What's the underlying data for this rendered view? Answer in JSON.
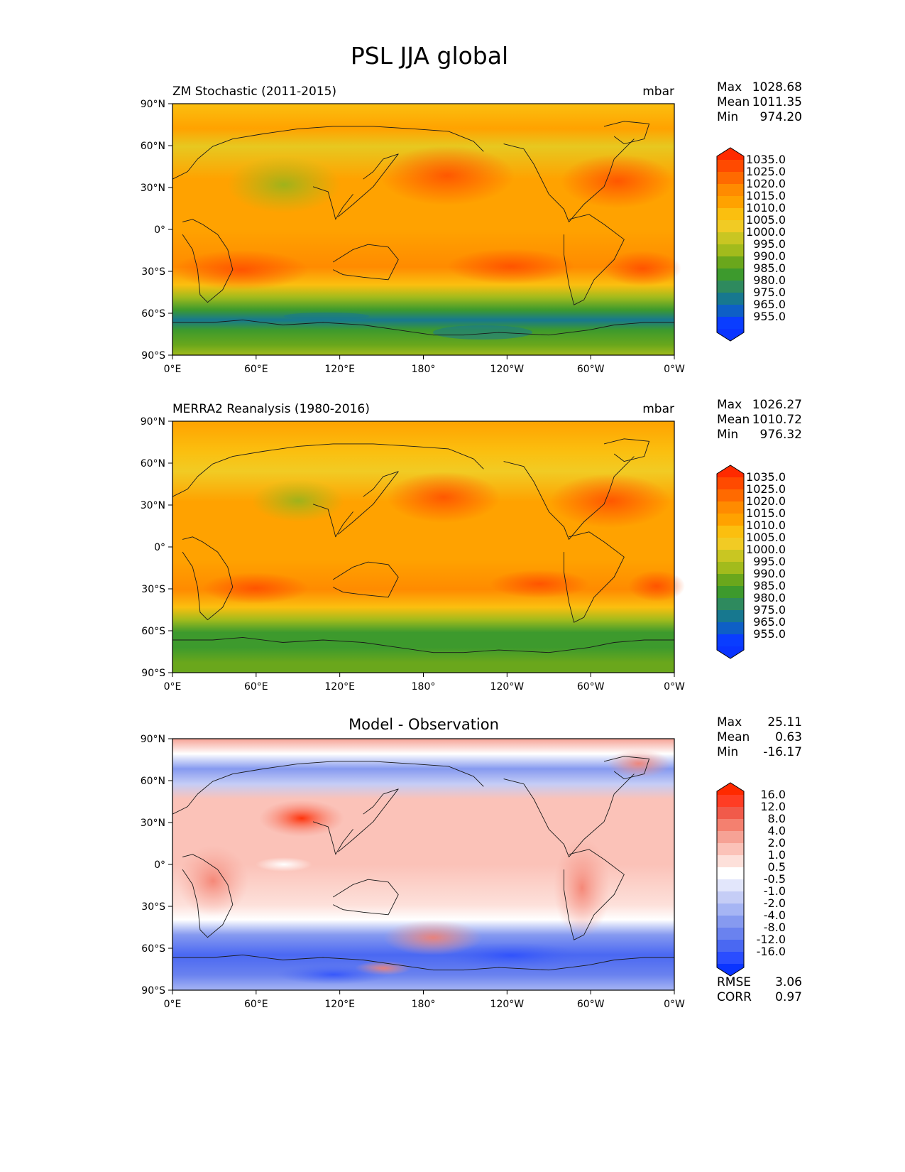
{
  "title": "PSL JJA global",
  "chart_data": [
    {
      "type": "heatmap",
      "panel_id": "model",
      "title_left": "ZM Stochastic (2011-2015)",
      "title_center": "",
      "units": "mbar",
      "stats": [
        {
          "label": "Max",
          "value": "1028.68"
        },
        {
          "label": "Mean",
          "value": "1011.35"
        },
        {
          "label": "Min",
          "value": "974.20"
        }
      ],
      "extra_stats": [],
      "colorbar": {
        "labels": [
          "1035.0",
          "1025.0",
          "1020.0",
          "1015.0",
          "1010.0",
          "1005.0",
          "1000.0",
          "995.0",
          "990.0",
          "985.0",
          "980.0",
          "975.0",
          "965.0",
          "955.0"
        ],
        "colors": [
          "#ff2a00",
          "#ff4a00",
          "#ff6a00",
          "#ff8b00",
          "#ffa200",
          "#fbbf0f",
          "#f1cb24",
          "#c9c622",
          "#a2bb1c",
          "#6aa71c",
          "#3d9a2d",
          "#2e8a5e",
          "#17788f",
          "#0e5fc6",
          "#0a3dff",
          "#0a34ff"
        ]
      },
      "xlabels": [
        "0°E",
        "60°E",
        "120°E",
        "180°",
        "120°W",
        "60°W",
        "0°W"
      ],
      "ylabels": [
        "90°N",
        "60°N",
        "30°N",
        "0°",
        "30°S",
        "60°S",
        "90°S"
      ]
    },
    {
      "type": "heatmap",
      "panel_id": "obs",
      "title_left": "MERRA2 Reanalysis (1980-2016)",
      "title_center": "",
      "units": "mbar",
      "stats": [
        {
          "label": "Max",
          "value": "1026.27"
        },
        {
          "label": "Mean",
          "value": "1010.72"
        },
        {
          "label": "Min",
          "value": "976.32"
        }
      ],
      "extra_stats": [],
      "colorbar": {
        "labels": [
          "1035.0",
          "1025.0",
          "1020.0",
          "1015.0",
          "1010.0",
          "1005.0",
          "1000.0",
          "995.0",
          "990.0",
          "985.0",
          "980.0",
          "975.0",
          "965.0",
          "955.0"
        ],
        "colors": [
          "#ff2a00",
          "#ff4a00",
          "#ff6a00",
          "#ff8b00",
          "#ffa200",
          "#fbbf0f",
          "#f1cb24",
          "#c9c622",
          "#a2bb1c",
          "#6aa71c",
          "#3d9a2d",
          "#2e8a5e",
          "#17788f",
          "#0e5fc6",
          "#0a3dff",
          "#0a34ff"
        ]
      },
      "xlabels": [
        "0°E",
        "60°E",
        "120°E",
        "180°",
        "120°W",
        "60°W",
        "0°W"
      ],
      "ylabels": [
        "90°N",
        "60°N",
        "30°N",
        "0°",
        "30°S",
        "60°S",
        "90°S"
      ]
    },
    {
      "type": "heatmap",
      "panel_id": "diff",
      "title_left": "",
      "title_center": "Model - Observation",
      "units": "",
      "stats": [
        {
          "label": "Max",
          "value": "25.11"
        },
        {
          "label": "Mean",
          "value": "0.63"
        },
        {
          "label": "Min",
          "value": "-16.17"
        }
      ],
      "extra_stats": [
        {
          "label": "RMSE",
          "value": "3.06"
        },
        {
          "label": "CORR",
          "value": "0.97"
        }
      ],
      "colorbar": {
        "labels": [
          "16.0",
          "12.0",
          "8.0",
          "4.0",
          "2.0",
          "1.0",
          "0.5",
          "-0.5",
          "-1.0",
          "-2.0",
          "-4.0",
          "-8.0",
          "-12.0",
          "-16.0"
        ],
        "colors": [
          "#ff2a00",
          "#ff3d24",
          "#f15a4a",
          "#f4806f",
          "#f6a295",
          "#fbc2b8",
          "#fde0da",
          "#ffffff",
          "#e2e6fb",
          "#c5cdf6",
          "#a6b5f4",
          "#869af0",
          "#6a82ef",
          "#4a68f2",
          "#2a4dff",
          "#0a34ff"
        ]
      },
      "xlabels": [
        "0°E",
        "60°E",
        "120°E",
        "180°",
        "120°W",
        "60°W",
        "0°W"
      ],
      "ylabels": [
        "90°N",
        "60°N",
        "30°N",
        "0°",
        "30°S",
        "60°S",
        "90°S"
      ]
    }
  ]
}
